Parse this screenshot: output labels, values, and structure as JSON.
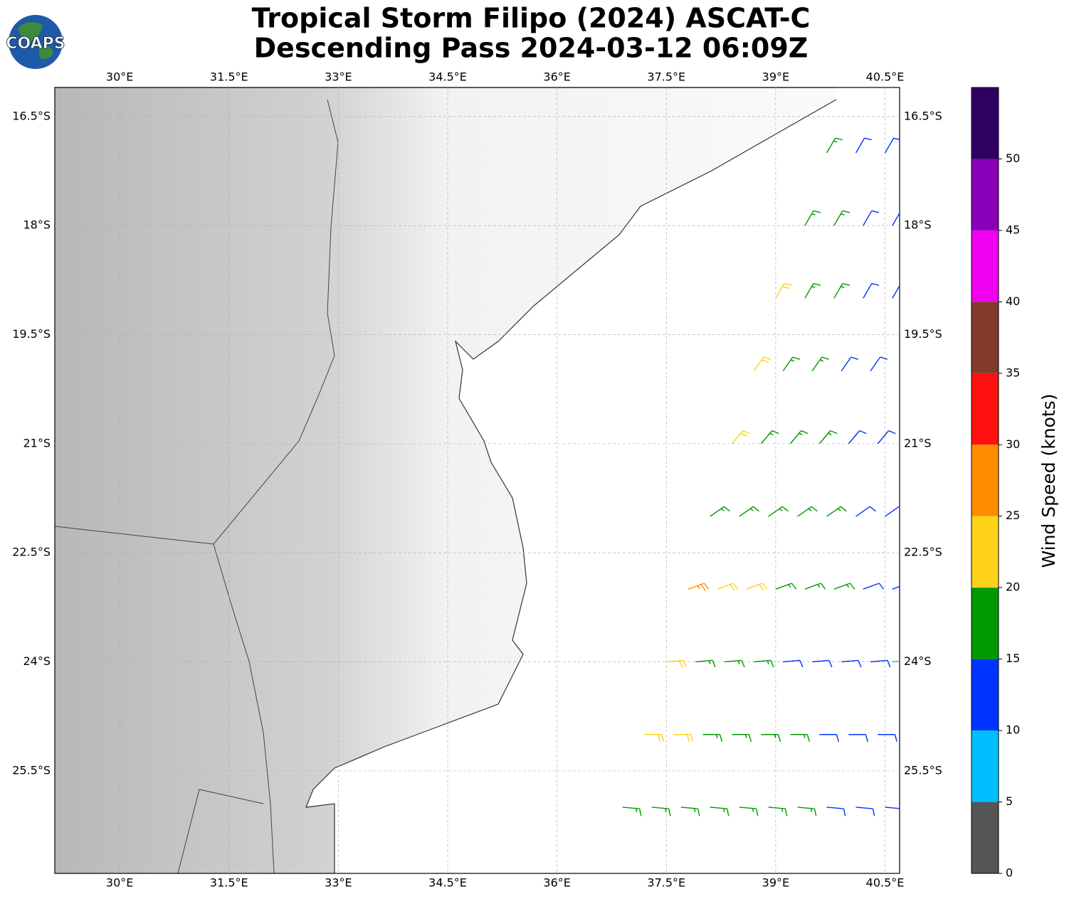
{
  "logo": {
    "text": "COAPS"
  },
  "chart_data": {
    "type": "wind-barb-map",
    "title": "Tropical Storm Filipo (2024) ASCAT-C",
    "subtitle": "Descending Pass 2024-03-12 06:09Z",
    "xlim": [
      29.11,
      40.7
    ],
    "ylim": [
      -26.91,
      -16.1
    ],
    "xticks": [
      {
        "value": 30,
        "label": "30°E"
      },
      {
        "value": 31.5,
        "label": "31.5°E"
      },
      {
        "value": 33,
        "label": "33°E"
      },
      {
        "value": 34.5,
        "label": "34.5°E"
      },
      {
        "value": 36,
        "label": "36°E"
      },
      {
        "value": 37.5,
        "label": "37.5°E"
      },
      {
        "value": 39,
        "label": "39°E"
      },
      {
        "value": 40.5,
        "label": "40.5°E"
      }
    ],
    "yticks": [
      {
        "value": -16.5,
        "label": "16.5°S"
      },
      {
        "value": -18,
        "label": "18°S"
      },
      {
        "value": -19.5,
        "label": "19.5°S"
      },
      {
        "value": -21,
        "label": "21°S"
      },
      {
        "value": -22.5,
        "label": "22.5°S"
      },
      {
        "value": -24,
        "label": "24°S"
      },
      {
        "value": -25.5,
        "label": "25.5°S"
      }
    ],
    "grid": true,
    "colorbar": {
      "label": "Wind Speed (knots)",
      "clim": [
        0,
        55
      ],
      "ticks": [
        0,
        5,
        10,
        15,
        20,
        25,
        30,
        35,
        40,
        45,
        50
      ],
      "colors": [
        "#555555",
        "#00bfff",
        "#0033ff",
        "#009900",
        "#ffd21a",
        "#ff8c00",
        "#ff1010",
        "#823a2a",
        "#f000f0",
        "#8800b8",
        "#2e0060"
      ]
    },
    "barbs": [
      {
        "lon": 39.7,
        "lat": -17,
        "speed": 16,
        "direction": 30
      },
      {
        "lon": 40.1,
        "lat": -17,
        "speed": 13,
        "direction": 30
      },
      {
        "lon": 40.5,
        "lat": -17,
        "speed": 12,
        "direction": 30
      },
      {
        "lon": 39.4,
        "lat": -18,
        "speed": 17,
        "direction": 30
      },
      {
        "lon": 39.8,
        "lat": -18,
        "speed": 16,
        "direction": 30
      },
      {
        "lon": 40.2,
        "lat": -18,
        "speed": 14,
        "direction": 30
      },
      {
        "lon": 40.6,
        "lat": -18,
        "speed": 12,
        "direction": 30
      },
      {
        "lon": 39.0,
        "lat": -19,
        "speed": 21,
        "direction": 30
      },
      {
        "lon": 39.4,
        "lat": -19,
        "speed": 17,
        "direction": 30
      },
      {
        "lon": 39.8,
        "lat": -19,
        "speed": 16,
        "direction": 30
      },
      {
        "lon": 40.2,
        "lat": -19,
        "speed": 13,
        "direction": 30
      },
      {
        "lon": 40.6,
        "lat": -19,
        "speed": 12,
        "direction": 30
      },
      {
        "lon": 38.7,
        "lat": -20,
        "speed": 22,
        "direction": 35
      },
      {
        "lon": 39.1,
        "lat": -20,
        "speed": 17,
        "direction": 35
      },
      {
        "lon": 39.5,
        "lat": -20,
        "speed": 17,
        "direction": 35
      },
      {
        "lon": 39.9,
        "lat": -20,
        "speed": 14,
        "direction": 35
      },
      {
        "lon": 40.3,
        "lat": -20,
        "speed": 13,
        "direction": 35
      },
      {
        "lon": 38.4,
        "lat": -21,
        "speed": 22,
        "direction": 40
      },
      {
        "lon": 38.8,
        "lat": -21,
        "speed": 17,
        "direction": 40
      },
      {
        "lon": 39.2,
        "lat": -21,
        "speed": 17,
        "direction": 40
      },
      {
        "lon": 39.6,
        "lat": -21,
        "speed": 17,
        "direction": 40
      },
      {
        "lon": 40.0,
        "lat": -21,
        "speed": 13,
        "direction": 40
      },
      {
        "lon": 40.4,
        "lat": -21,
        "speed": 12,
        "direction": 40
      },
      {
        "lon": 38.1,
        "lat": -22,
        "speed": 19,
        "direction": 55
      },
      {
        "lon": 38.5,
        "lat": -22,
        "speed": 17,
        "direction": 55
      },
      {
        "lon": 38.9,
        "lat": -22,
        "speed": 17,
        "direction": 55
      },
      {
        "lon": 39.3,
        "lat": -22,
        "speed": 17,
        "direction": 55
      },
      {
        "lon": 39.7,
        "lat": -22,
        "speed": 16,
        "direction": 55
      },
      {
        "lon": 40.1,
        "lat": -22,
        "speed": 14,
        "direction": 55
      },
      {
        "lon": 40.5,
        "lat": -22,
        "speed": 13,
        "direction": 55
      },
      {
        "lon": 37.8,
        "lat": -23,
        "speed": 27,
        "direction": 70
      },
      {
        "lon": 38.2,
        "lat": -23,
        "speed": 22,
        "direction": 70
      },
      {
        "lon": 38.6,
        "lat": -23,
        "speed": 22,
        "direction": 70
      },
      {
        "lon": 39.0,
        "lat": -23,
        "speed": 17,
        "direction": 70
      },
      {
        "lon": 39.4,
        "lat": -23,
        "speed": 16,
        "direction": 70
      },
      {
        "lon": 39.8,
        "lat": -23,
        "speed": 16,
        "direction": 70
      },
      {
        "lon": 40.2,
        "lat": -23,
        "speed": 14,
        "direction": 70
      },
      {
        "lon": 40.6,
        "lat": -23,
        "speed": 14,
        "direction": 70
      },
      {
        "lon": 37.5,
        "lat": -24,
        "speed": 22,
        "direction": 85
      },
      {
        "lon": 37.9,
        "lat": -24,
        "speed": 17,
        "direction": 85
      },
      {
        "lon": 38.3,
        "lat": -24,
        "speed": 17,
        "direction": 85
      },
      {
        "lon": 38.7,
        "lat": -24,
        "speed": 17,
        "direction": 85
      },
      {
        "lon": 39.1,
        "lat": -24,
        "speed": 13,
        "direction": 85
      },
      {
        "lon": 39.5,
        "lat": -24,
        "speed": 13,
        "direction": 85
      },
      {
        "lon": 39.9,
        "lat": -24,
        "speed": 13,
        "direction": 85
      },
      {
        "lon": 40.3,
        "lat": -24,
        "speed": 12,
        "direction": 85
      },
      {
        "lon": 40.6,
        "lat": -24,
        "speed": 8,
        "direction": 85
      },
      {
        "lon": 37.2,
        "lat": -25,
        "speed": 22,
        "direction": 90
      },
      {
        "lon": 37.6,
        "lat": -25,
        "speed": 22,
        "direction": 90
      },
      {
        "lon": 38.0,
        "lat": -25,
        "speed": 17,
        "direction": 90
      },
      {
        "lon": 38.4,
        "lat": -25,
        "speed": 17,
        "direction": 90
      },
      {
        "lon": 38.8,
        "lat": -25,
        "speed": 17,
        "direction": 90
      },
      {
        "lon": 39.2,
        "lat": -25,
        "speed": 16,
        "direction": 90
      },
      {
        "lon": 39.6,
        "lat": -25,
        "speed": 13,
        "direction": 90
      },
      {
        "lon": 40.0,
        "lat": -25,
        "speed": 13,
        "direction": 90
      },
      {
        "lon": 40.4,
        "lat": -25,
        "speed": 12,
        "direction": 90
      },
      {
        "lon": 36.9,
        "lat": -26,
        "speed": 17,
        "direction": 95
      },
      {
        "lon": 37.3,
        "lat": -26,
        "speed": 17,
        "direction": 95
      },
      {
        "lon": 37.7,
        "lat": -26,
        "speed": 17,
        "direction": 95
      },
      {
        "lon": 38.1,
        "lat": -26,
        "speed": 17,
        "direction": 95
      },
      {
        "lon": 38.5,
        "lat": -26,
        "speed": 17,
        "direction": 95
      },
      {
        "lon": 38.9,
        "lat": -26,
        "speed": 16,
        "direction": 95
      },
      {
        "lon": 39.3,
        "lat": -26,
        "speed": 16,
        "direction": 95
      },
      {
        "lon": 39.7,
        "lat": -26,
        "speed": 13,
        "direction": 95
      },
      {
        "lon": 40.1,
        "lat": -26,
        "speed": 13,
        "direction": 95
      },
      {
        "lon": 40.5,
        "lat": -26,
        "speed": 12,
        "direction": 95
      }
    ]
  }
}
